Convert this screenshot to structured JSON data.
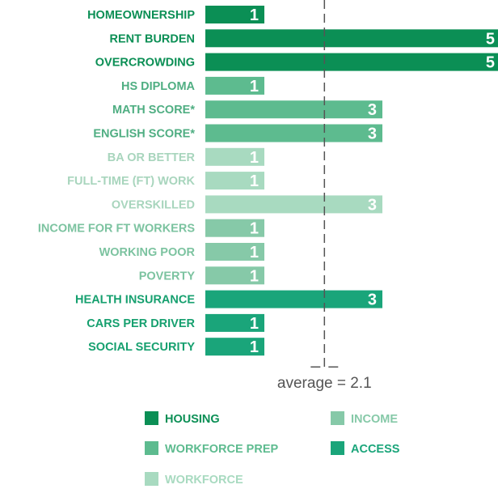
{
  "chart_data": {
    "type": "bar",
    "orientation": "horizontal",
    "categories": [
      "HOMEOWNERSHIP",
      "RENT BURDEN",
      "OVERCROWDING",
      "HS DIPLOMA",
      "MATH SCORE*",
      "ENGLISH SCORE*",
      "BA OR BETTER",
      "FULL-TIME (FT) WORK",
      "OVERSKILLED",
      "INCOME FOR FT WORKERS",
      "WORKING POOR",
      "POVERTY",
      "HEALTH INSURANCE",
      "CARS PER DRIVER",
      "SOCIAL SECURITY"
    ],
    "values": [
      1,
      5,
      5,
      1,
      3,
      3,
      1,
      1,
      3,
      1,
      1,
      1,
      3,
      1,
      1
    ],
    "groups": [
      "HOUSING",
      "HOUSING",
      "HOUSING",
      "WORKFORCE PREP",
      "WORKFORCE PREP",
      "WORKFORCE PREP",
      "WORKFORCE",
      "WORKFORCE",
      "WORKFORCE",
      "INCOME",
      "INCOME",
      "INCOME",
      "ACCESS",
      "ACCESS",
      "ACCESS"
    ],
    "reference_line": {
      "value": 2.1,
      "label": "average = 2.1"
    },
    "xlim": [
      0,
      5
    ],
    "grid": false,
    "legend_placement": "bottom",
    "legend": [
      {
        "name": "HOUSING",
        "color": "#0b8f55"
      },
      {
        "name": "INCOME",
        "color": "#86c9a8"
      },
      {
        "name": "WORKFORCE PREP",
        "color": "#5dbb8f"
      },
      {
        "name": "ACCESS",
        "color": "#1aa57a"
      },
      {
        "name": "WORKFORCE",
        "color": "#a8dac0"
      }
    ],
    "colors": {
      "HOUSING": {
        "bar": "#0b8f55",
        "label": "#0b8f55"
      },
      "WORKFORCE PREP": {
        "bar": "#5dbb8f",
        "label": "#4fae82"
      },
      "WORKFORCE": {
        "bar": "#a8dac0",
        "label": "#a8d5bd"
      },
      "INCOME": {
        "bar": "#86c9a8",
        "label": "#7cc3a0"
      },
      "ACCESS": {
        "bar": "#1aa57a",
        "label": "#16a06f"
      }
    }
  }
}
